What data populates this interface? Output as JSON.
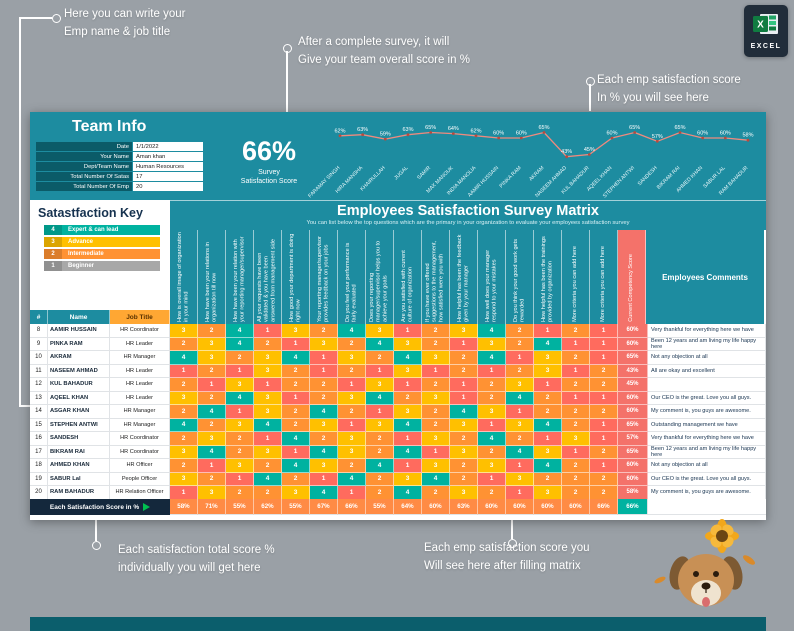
{
  "annotations": {
    "emp_name": "Here you can write your\nEmp name & job title",
    "overall_score": "After a complete survey, it will\nGive your team overall score in %",
    "emp_score_top": "Each emp satisfaction score\nIn % you will see here",
    "total_score_bottom": "Each satisfaction total score %\nindividually you will get here",
    "emp_score_bottom": "Each emp satisfaction score you\nWill see here after filling matrix"
  },
  "logo": {
    "text": "EXCEL",
    "icon": "excel-grid-icon"
  },
  "team_info": {
    "title": "Team Info",
    "fields": [
      {
        "label": "Date",
        "value": "1/1/2022"
      },
      {
        "label": "Your Name",
        "value": "Aman khan"
      },
      {
        "label": "Dept/Team Name",
        "value": "Human Resources"
      },
      {
        "label": "Total Number Of Satas",
        "value": "17"
      },
      {
        "label": "Total Number Of Emp",
        "value": "20"
      }
    ]
  },
  "score": {
    "value": "66%",
    "label": "Survey\nSatisfaction Score"
  },
  "chart_data": {
    "type": "line",
    "title": "Employee satisfaction score by employee",
    "x": [
      "FARAMAY SINGH",
      "HIRA MANSHA",
      "KHAIRULLAH",
      "JUGAL",
      "SAMIR",
      "MAX MANOUK",
      "INDIA MANOLIA",
      "AAMIR HUSSAIN",
      "PINKA RAM",
      "AKRAM",
      "NASEEM AHMAD",
      "KUL BAHADUR",
      "AQEEL KHAN",
      "STEPHEN ANTWI",
      "SANDESH",
      "BIKRAM RAI",
      "AHMED KHAN",
      "SABUR LAL",
      "RAM BAHADUR"
    ],
    "values": [
      62,
      63,
      59,
      63,
      65,
      64,
      62,
      60,
      60,
      65,
      43,
      45,
      60,
      65,
      57,
      65,
      60,
      60,
      58
    ],
    "ylim": [
      40,
      75
    ],
    "grid": false,
    "legend": "none",
    "line_color": "#ef8a7e",
    "marker_color": "#b94a3e"
  },
  "matrix": {
    "title": "Employees Satisfaction Survey Matrix",
    "subtitle": "You can list below the top questions which are the primary in your organization to evaluate your employees satisfaction survey",
    "col_num": "#",
    "col_name": "Name",
    "col_job": "Job Title",
    "col_competency": "Current Competency Score",
    "col_comments": "Employees Comments",
    "questions": [
      "How is overall image of organization in your mind",
      "How have been your relations in organization till now",
      "How have been your relation with your reporting manager/supervisor",
      "All your requests have been validated & you have been answered from management side",
      "How good your department is doing right now",
      "Your reporting manager/supervisor provides feedback on your jobs",
      "Do you feel your performance is fairly evaluated",
      "Does your reporting manager/supervisor helps you to achieve your goals",
      "Are you satisfied with current culture of organization",
      "If you have ever offered suggestions to the management, how satisfied were you with",
      "How helpful has been the feedback given by your manager",
      "How well does your manager respond to your mistakes",
      "Do you think your good work gets rewarded",
      "How helpful has been the trainings provided by organization",
      "More criteria you can add here",
      "More criteria you can add here"
    ]
  },
  "key": {
    "title": "Satastfaction Key",
    "items": [
      {
        "value": "4",
        "label": "Expert & can lead",
        "color": "#00b2a0"
      },
      {
        "value": "3",
        "label": "Advance",
        "color": "#ffc000"
      },
      {
        "value": "2",
        "label": "Intermediate",
        "color": "#ff9233"
      },
      {
        "value": "1",
        "label": "Beginner",
        "color": "#a8a8a8"
      }
    ]
  },
  "score_colors": {
    "4": "#00b2a0",
    "3": "#ffc000",
    "2": "#ff9233",
    "1": "#ff6b5e"
  },
  "rows": [
    {
      "num": "8",
      "name": "AAMIR HUSSAIN",
      "job": "HR Coordinator",
      "scores": [
        3,
        2,
        4,
        1,
        3,
        2,
        4,
        3,
        1,
        2,
        3,
        4,
        2,
        1,
        2,
        1
      ],
      "competency": "60%",
      "comment": "Very thankful for everything here we have"
    },
    {
      "num": "9",
      "name": "PINKA RAM",
      "job": "HR Leader",
      "scores": [
        2,
        3,
        4,
        2,
        1,
        3,
        2,
        4,
        3,
        2,
        1,
        3,
        2,
        4,
        1,
        1
      ],
      "competency": "60%",
      "comment": "Been 12 years and am living my life happy here"
    },
    {
      "num": "10",
      "name": "AKRAM",
      "job": "HR Manager",
      "scores": [
        4,
        3,
        2,
        3,
        4,
        1,
        3,
        2,
        4,
        3,
        2,
        4,
        1,
        3,
        2,
        1
      ],
      "competency": "65%",
      "comment": "Not any objection at all"
    },
    {
      "num": "11",
      "name": "NASEEM AHMAD",
      "job": "HR Leader",
      "scores": [
        1,
        2,
        1,
        3,
        2,
        1,
        2,
        1,
        3,
        1,
        2,
        1,
        2,
        3,
        1,
        2
      ],
      "competency": "43%",
      "comment": "All are okay and excellent"
    },
    {
      "num": "12",
      "name": "KUL BAHADUR",
      "job": "HR Leader",
      "scores": [
        2,
        1,
        3,
        1,
        2,
        2,
        1,
        3,
        1,
        2,
        1,
        2,
        3,
        1,
        2,
        2
      ],
      "competency": "45%",
      "comment": ""
    },
    {
      "num": "13",
      "name": "AQEEL KHAN",
      "job": "HR Leader",
      "scores": [
        3,
        2,
        4,
        3,
        1,
        2,
        3,
        4,
        2,
        3,
        1,
        2,
        4,
        2,
        1,
        1
      ],
      "competency": "60%",
      "comment": "Our CEO is the great. Love you all guys."
    },
    {
      "num": "14",
      "name": "ASGAR KHAN",
      "job": "HR Manager",
      "scores": [
        2,
        4,
        1,
        3,
        2,
        4,
        2,
        1,
        3,
        2,
        4,
        3,
        1,
        2,
        2,
        2
      ],
      "competency": "60%",
      "comment": "My comment is, you guys are awesome."
    },
    {
      "num": "15",
      "name": "STEPHEN ANTWI",
      "job": "HR Manager",
      "scores": [
        4,
        2,
        3,
        4,
        2,
        3,
        1,
        3,
        4,
        2,
        3,
        1,
        3,
        4,
        2,
        1
      ],
      "competency": "65%",
      "comment": "Outstanding management we have"
    },
    {
      "num": "16",
      "name": "SANDESH",
      "job": "HR Coordinator",
      "scores": [
        2,
        3,
        2,
        1,
        4,
        2,
        3,
        2,
        1,
        3,
        2,
        4,
        2,
        1,
        3,
        1
      ],
      "competency": "57%",
      "comment": "Very thankful for everything here we have"
    },
    {
      "num": "17",
      "name": "BIKRAM RAI",
      "job": "HR Coordinator",
      "scores": [
        3,
        4,
        2,
        3,
        1,
        4,
        3,
        2,
        4,
        1,
        3,
        2,
        4,
        3,
        1,
        2
      ],
      "competency": "65%",
      "comment": "Been 12 years and am living my life happy here"
    },
    {
      "num": "18",
      "name": "AHMED KHAN",
      "job": "HR Officer",
      "scores": [
        2,
        1,
        3,
        2,
        4,
        3,
        2,
        4,
        1,
        3,
        2,
        3,
        1,
        4,
        2,
        1
      ],
      "competency": "60%",
      "comment": "Not any objection at all"
    },
    {
      "num": "19",
      "name": "SABUR Lal",
      "job": "People Officer",
      "scores": [
        3,
        2,
        1,
        4,
        2,
        1,
        4,
        2,
        3,
        4,
        2,
        1,
        3,
        2,
        2,
        2
      ],
      "competency": "60%",
      "comment": "Our CEO is the great. Love you all guys."
    },
    {
      "num": "20",
      "name": "RAM BAHADUR",
      "job": "HR Relation Officer",
      "scores": [
        1,
        3,
        2,
        2,
        3,
        4,
        1,
        2,
        4,
        2,
        3,
        2,
        1,
        3,
        2,
        2
      ],
      "competency": "58%",
      "comment": "My comment is, you guys are awesome."
    }
  ],
  "totals": {
    "label": "Each Satisfaction Score in %",
    "values": [
      "58%",
      "71%",
      "55%",
      "62%",
      "55%",
      "67%",
      "66%",
      "55%",
      "64%",
      "60%",
      "63%",
      "60%",
      "60%",
      "60%",
      "60%",
      "66%"
    ],
    "overall": "66%"
  }
}
